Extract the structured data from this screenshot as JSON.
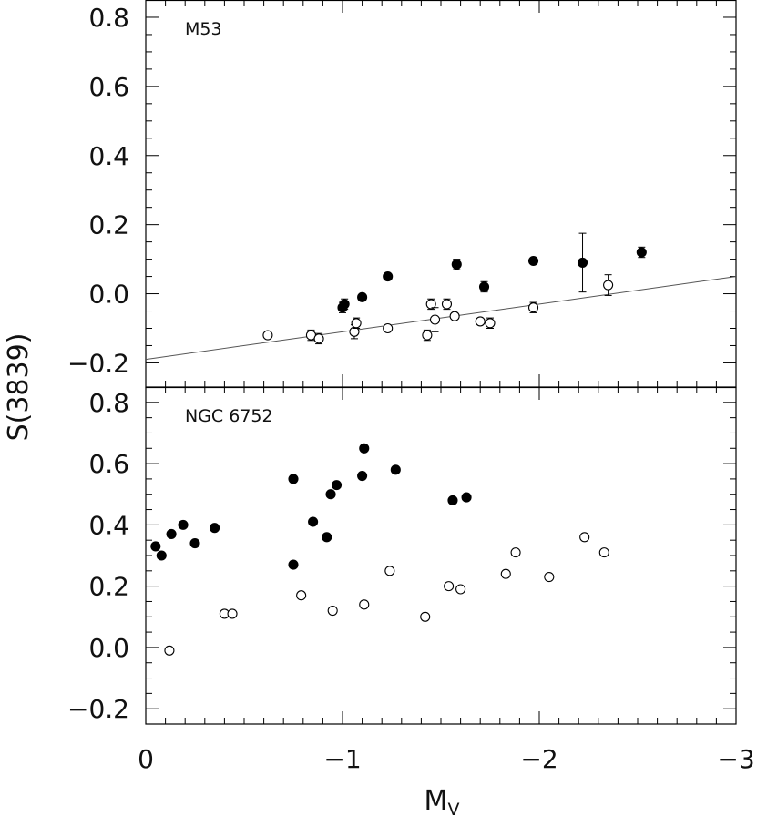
{
  "chart_data": {
    "type": "scatter",
    "xlabel": "M",
    "xlabel_sub": "V",
    "ylabel": "S(3839)",
    "xlim": [
      0,
      -3
    ],
    "x_ticks": [
      0,
      -1,
      -2,
      -3
    ],
    "x_tick_labels": [
      "0",
      "−1",
      "−2",
      "−3"
    ],
    "grid": false,
    "panels": [
      {
        "label": "M53",
        "ylim": [
          -0.27,
          0.85
        ],
        "y_ticks": [
          -0.2,
          0.0,
          0.2,
          0.4,
          0.6,
          0.8
        ],
        "y_tick_labels": [
          "−0.2",
          "0.0",
          "0.2",
          "0.4",
          "0.6",
          "0.8"
        ],
        "fit_line": {
          "x": [
            0,
            -3
          ],
          "y": [
            -0.19,
            0.05
          ]
        },
        "series": [
          {
            "marker": "filled-circle",
            "points": [
              {
                "x": -1.0,
                "y": -0.04,
                "err": 0.015
              },
              {
                "x": -1.01,
                "y": -0.03,
                "err": 0.015
              },
              {
                "x": -1.1,
                "y": -0.01,
                "err": 0.008
              },
              {
                "x": -1.23,
                "y": 0.05,
                "err": 0.008
              },
              {
                "x": -1.58,
                "y": 0.085,
                "err": 0.015
              },
              {
                "x": -1.72,
                "y": 0.02,
                "err": 0.015
              },
              {
                "x": -1.97,
                "y": 0.095,
                "err": 0.008
              },
              {
                "x": -2.22,
                "y": 0.09,
                "err": 0.085
              },
              {
                "x": -2.52,
                "y": 0.12,
                "err": 0.015
              }
            ]
          },
          {
            "marker": "open-circle",
            "points": [
              {
                "x": -0.62,
                "y": -0.12,
                "err": 0.008
              },
              {
                "x": -0.84,
                "y": -0.12,
                "err": 0.015
              },
              {
                "x": -0.88,
                "y": -0.13,
                "err": 0.015
              },
              {
                "x": -1.06,
                "y": -0.11,
                "err": 0.02
              },
              {
                "x": -1.07,
                "y": -0.085,
                "err": 0.015
              },
              {
                "x": -1.23,
                "y": -0.1,
                "err": 0.008
              },
              {
                "x": -1.43,
                "y": -0.12,
                "err": 0.015
              },
              {
                "x": -1.45,
                "y": -0.03,
                "err": 0.015
              },
              {
                "x": -1.47,
                "y": -0.075,
                "err": 0.035
              },
              {
                "x": -1.53,
                "y": -0.03,
                "err": 0.015
              },
              {
                "x": -1.57,
                "y": -0.065,
                "err": 0.008
              },
              {
                "x": -1.7,
                "y": -0.08,
                "err": 0.008
              },
              {
                "x": -1.75,
                "y": -0.085,
                "err": 0.015
              },
              {
                "x": -1.97,
                "y": -0.04,
                "err": 0.015
              },
              {
                "x": -2.35,
                "y": 0.025,
                "err": 0.03
              }
            ]
          }
        ]
      },
      {
        "label": "NGC 6752",
        "ylim": [
          -0.25,
          0.85
        ],
        "y_ticks": [
          -0.2,
          0.0,
          0.2,
          0.4,
          0.6,
          0.8
        ],
        "y_tick_labels": [
          "−0.2",
          "0.0",
          "0.2",
          "0.4",
          "0.6",
          "0.8"
        ],
        "series": [
          {
            "marker": "filled-circle",
            "points": [
              {
                "x": -0.05,
                "y": 0.33
              },
              {
                "x": -0.08,
                "y": 0.3
              },
              {
                "x": -0.13,
                "y": 0.37
              },
              {
                "x": -0.19,
                "y": 0.4
              },
              {
                "x": -0.25,
                "y": 0.34
              },
              {
                "x": -0.35,
                "y": 0.39
              },
              {
                "x": -0.75,
                "y": 0.27
              },
              {
                "x": -0.75,
                "y": 0.55
              },
              {
                "x": -0.85,
                "y": 0.41
              },
              {
                "x": -0.92,
                "y": 0.36
              },
              {
                "x": -0.94,
                "y": 0.5
              },
              {
                "x": -0.97,
                "y": 0.53
              },
              {
                "x": -1.1,
                "y": 0.56
              },
              {
                "x": -1.11,
                "y": 0.65
              },
              {
                "x": -1.27,
                "y": 0.58
              },
              {
                "x": -1.56,
                "y": 0.48
              },
              {
                "x": -1.63,
                "y": 0.49
              }
            ]
          },
          {
            "marker": "open-circle",
            "points": [
              {
                "x": -0.12,
                "y": -0.01
              },
              {
                "x": -0.4,
                "y": 0.11
              },
              {
                "x": -0.44,
                "y": 0.11
              },
              {
                "x": -0.79,
                "y": 0.17
              },
              {
                "x": -0.95,
                "y": 0.12
              },
              {
                "x": -1.11,
                "y": 0.14
              },
              {
                "x": -1.24,
                "y": 0.25
              },
              {
                "x": -1.42,
                "y": 0.1
              },
              {
                "x": -1.54,
                "y": 0.2
              },
              {
                "x": -1.6,
                "y": 0.19
              },
              {
                "x": -1.83,
                "y": 0.24
              },
              {
                "x": -1.88,
                "y": 0.31
              },
              {
                "x": -2.05,
                "y": 0.23
              },
              {
                "x": -2.23,
                "y": 0.36
              },
              {
                "x": -2.33,
                "y": 0.31
              }
            ]
          }
        ]
      }
    ]
  }
}
